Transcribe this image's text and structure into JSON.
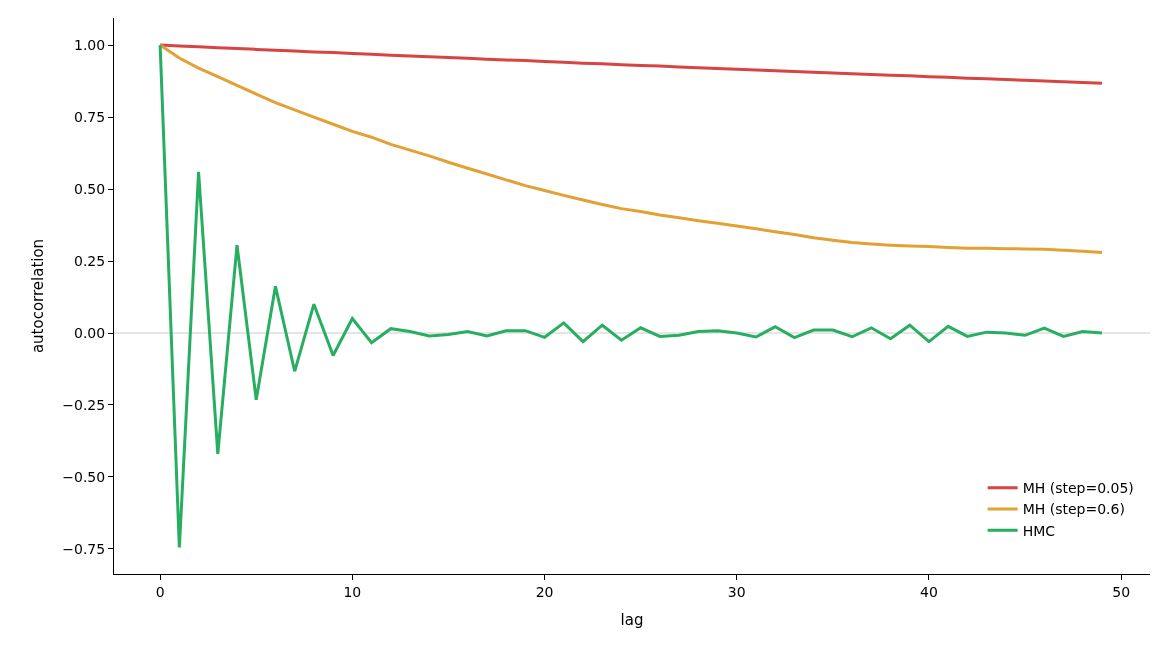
{
  "chart_data": {
    "type": "line",
    "xlabel": "lag",
    "ylabel": "autocorrelation",
    "x": [
      0,
      1,
      2,
      3,
      4,
      5,
      6,
      7,
      8,
      9,
      10,
      11,
      12,
      13,
      14,
      15,
      16,
      17,
      18,
      19,
      20,
      21,
      22,
      23,
      24,
      25,
      26,
      27,
      28,
      29,
      30,
      31,
      32,
      33,
      34,
      35,
      36,
      37,
      38,
      39,
      40,
      41,
      42,
      43,
      44,
      45,
      46,
      47,
      48,
      49
    ],
    "series": [
      {
        "name": "MH (step=0.05)",
        "color": "#d64541",
        "values": [
          1.0,
          0.997,
          0.994,
          0.991,
          0.988,
          0.985,
          0.982,
          0.979,
          0.976,
          0.974,
          0.971,
          0.968,
          0.965,
          0.962,
          0.959,
          0.957,
          0.954,
          0.951,
          0.948,
          0.946,
          0.943,
          0.94,
          0.937,
          0.935,
          0.932,
          0.929,
          0.927,
          0.924,
          0.921,
          0.919,
          0.916,
          0.913,
          0.911,
          0.908,
          0.906,
          0.903,
          0.9,
          0.898,
          0.895,
          0.893,
          0.89,
          0.888,
          0.885,
          0.883,
          0.88,
          0.878,
          0.875,
          0.873,
          0.87,
          0.867
        ]
      },
      {
        "name": "MH (step=0.6)",
        "color": "#e3a033",
        "values": [
          1.0,
          0.955,
          0.92,
          0.89,
          0.86,
          0.83,
          0.8,
          0.775,
          0.75,
          0.725,
          0.7,
          0.68,
          0.655,
          0.635,
          0.615,
          0.593,
          0.572,
          0.552,
          0.532,
          0.512,
          0.495,
          0.478,
          0.462,
          0.446,
          0.432,
          0.422,
          0.41,
          0.4,
          0.39,
          0.381,
          0.372,
          0.362,
          0.352,
          0.342,
          0.331,
          0.322,
          0.314,
          0.309,
          0.305,
          0.302,
          0.3,
          0.297,
          0.294,
          0.294,
          0.293,
          0.292,
          0.291,
          0.287,
          0.284,
          0.28
        ]
      },
      {
        "name": "HMC",
        "color": "#27ae60",
        "values": [
          1.0,
          -0.745,
          0.56,
          -0.42,
          0.305,
          -0.232,
          0.162,
          -0.133,
          0.1,
          -0.078,
          0.05,
          -0.034,
          0.015,
          0.005,
          -0.01,
          -0.005,
          0.005,
          -0.01,
          0.008,
          0.008,
          -0.015,
          0.035,
          -0.03,
          0.027,
          -0.025,
          0.018,
          -0.012,
          -0.008,
          0.005,
          0.008,
          0.0,
          -0.014,
          0.022,
          -0.016,
          0.01,
          0.01,
          -0.013,
          0.018,
          -0.02,
          0.027,
          -0.03,
          0.023,
          -0.012,
          0.003,
          0.0,
          -0.008,
          0.017,
          -0.012,
          0.005,
          0.0
        ]
      }
    ],
    "xlim": [
      -2.4,
      51.5
    ],
    "xticks": [
      0,
      10,
      20,
      30,
      40,
      50
    ],
    "ylim": [
      -0.837,
      1.094
    ],
    "yticks": [
      {
        "value": -0.75,
        "label": "−0.75"
      },
      {
        "value": -0.5,
        "label": "−0.50"
      },
      {
        "value": -0.25,
        "label": "−0.25"
      },
      {
        "value": 0,
        "label": "0.00"
      },
      {
        "value": 0.25,
        "label": "0.25"
      },
      {
        "value": 0.5,
        "label": "0.50"
      },
      {
        "value": 0.75,
        "label": "0.75"
      },
      {
        "value": 1,
        "label": "1.00"
      }
    ],
    "ref_lines": [
      {
        "axis": "y",
        "value": 0,
        "color": "#cccccc"
      }
    ],
    "grid": false,
    "legend": "bottom right",
    "line_style": "solid",
    "marker": "none"
  }
}
